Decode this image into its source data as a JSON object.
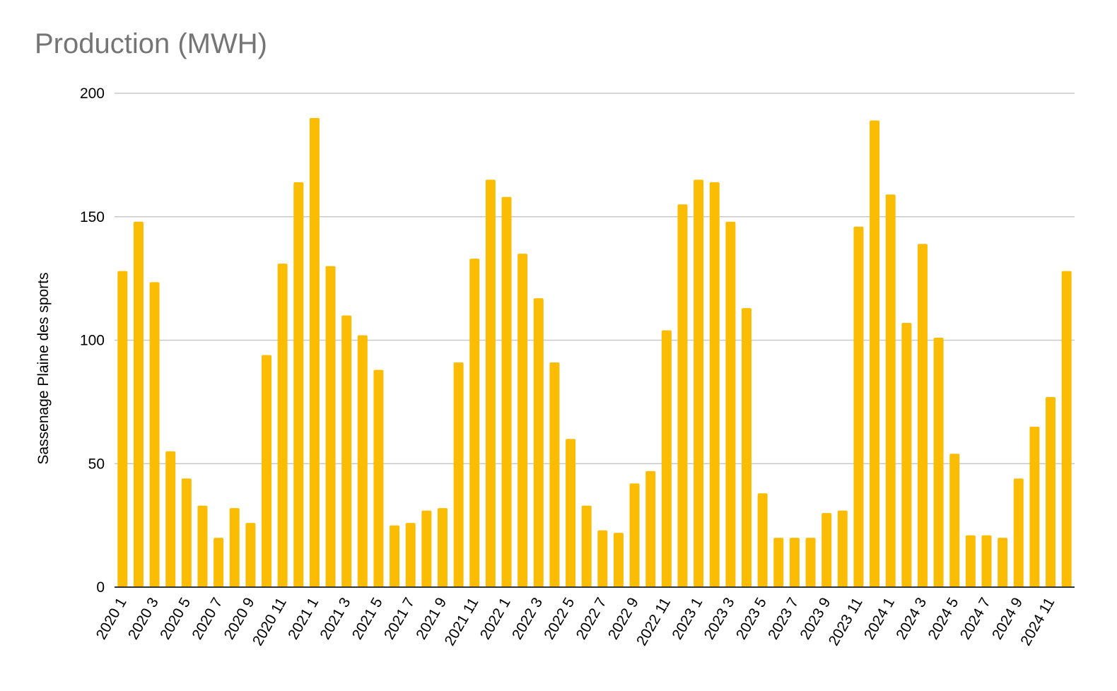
{
  "chart_data": {
    "type": "bar",
    "title": "Production (MWH)",
    "xlabel": "",
    "ylabel": "Sassenage Plaine des sports",
    "ylim": [
      0,
      200
    ],
    "yticks": [
      0,
      50,
      100,
      150,
      200
    ],
    "grid": true,
    "legend": "none",
    "bar_color": "#fbbc04",
    "categories": [
      "2020 1",
      "2020 2",
      "2020 3",
      "2020 4",
      "2020 5",
      "2020 6",
      "2020 7",
      "2020 8",
      "2020 9",
      "2020 10",
      "2020 11",
      "2020 12",
      "2021 1",
      "2021 2",
      "2021 3",
      "2021 4",
      "2021 5",
      "2021 6",
      "2021 7",
      "2021 8",
      "2021 9",
      "2021 10",
      "2021 11",
      "2021 12",
      "2022 1",
      "2022 2",
      "2022 3",
      "2022 4",
      "2022 5",
      "2022 6",
      "2022 7",
      "2022 8",
      "2022 9",
      "2022 10",
      "2022 11",
      "2022 12",
      "2023 1",
      "2023 2",
      "2023 3",
      "2023 4",
      "2023 5",
      "2023 6",
      "2023 7",
      "2023 8",
      "2023 9",
      "2023 10",
      "2023 11",
      "2023 12",
      "2024 1",
      "2024 2",
      "2024 3",
      "2024 4",
      "2024 5",
      "2024 6",
      "2024 7",
      "2024 8",
      "2024 9",
      "2024 10",
      "2024 11",
      "2024 12"
    ],
    "tick_labels_shown": [
      "2020 1",
      "2020 3",
      "2020 5",
      "2020 7",
      "2020 9",
      "2020 11",
      "2021 1",
      "2021 3",
      "2021 5",
      "2021 7",
      "2021 9",
      "2021 11",
      "2022 1",
      "2022 3",
      "2022 5",
      "2022 7",
      "2022 9",
      "2022 11",
      "2023 1",
      "2023 3",
      "2023 5",
      "2023 7",
      "2023 9",
      "2023 11",
      "2024 1",
      "2024 3",
      "2024 5",
      "2024 7",
      "2024 9",
      "2024 11"
    ],
    "values": [
      128,
      148,
      123.5,
      55,
      44,
      33,
      20,
      32,
      26,
      94,
      131,
      164,
      190,
      130,
      110,
      102,
      88,
      25,
      26,
      31,
      32,
      91,
      133,
      165,
      158,
      135,
      117,
      91,
      60,
      33,
      23,
      22,
      42,
      47,
      104,
      155,
      165,
      164,
      148,
      113,
      38,
      20,
      20,
      20,
      30,
      31,
      146,
      189,
      159,
      107,
      139,
      101,
      54,
      21,
      21,
      20,
      44,
      65,
      77,
      128
    ]
  }
}
